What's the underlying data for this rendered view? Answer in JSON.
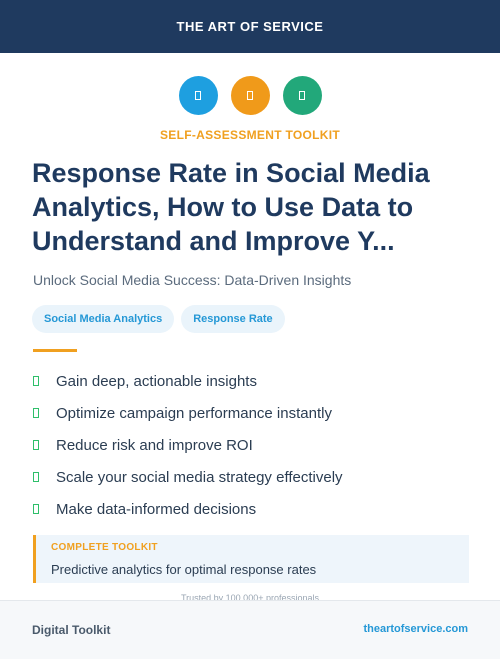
{
  "header": {
    "brand": "THE ART OF SERVICE"
  },
  "icons": [
    {
      "name": "blue-square-icon",
      "color": "#1e9fe0"
    },
    {
      "name": "orange-square-icon",
      "color": "#f09a1a"
    },
    {
      "name": "green-square-icon",
      "color": "#22a87a"
    }
  ],
  "kicker": "SELF-ASSESSMENT TOOLKIT",
  "title": "Response Rate in Social Media Analytics, How to Use Data to Understand and Improve Y...",
  "subtitle": "Unlock Social Media Success: Data-Driven Insights",
  "tags": [
    "Social Media Analytics",
    "Response Rate"
  ],
  "benefits": [
    "Gain deep, actionable insights",
    "Optimize campaign performance instantly",
    "Reduce risk and improve ROI",
    "Scale your social media strategy effectively",
    "Make data-informed decisions"
  ],
  "callout": {
    "label": "COMPLETE TOOLKIT",
    "text": "Predictive analytics for optimal response rates"
  },
  "trust": "Trusted by 100,000+ professionals",
  "footer": {
    "left": "Digital Toolkit",
    "right": "theartofservice.com"
  },
  "colors": {
    "navy": "#1f3a5f",
    "accent_orange": "#f0a020",
    "accent_blue": "#2598d6",
    "check_green": "#2ebf6a"
  }
}
